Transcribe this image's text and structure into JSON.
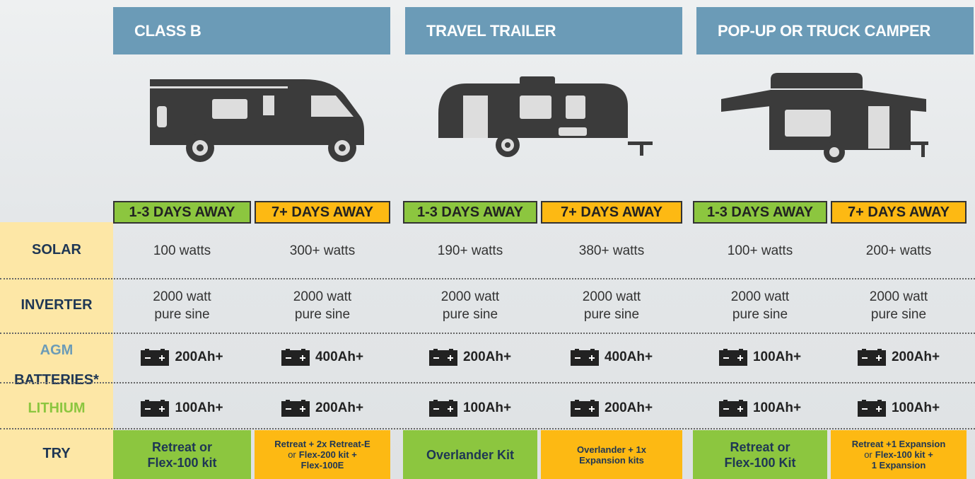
{
  "row_labels": {
    "solar": "SOLAR",
    "inverter": "INVERTER",
    "agm": "AGM",
    "batteries": "BATTERIES*",
    "lithium": "LITHIUM",
    "try": "TRY"
  },
  "vehicles": [
    {
      "title": "CLASS B",
      "plans": [
        {
          "duration": "1-3 DAYS AWAY",
          "solar": "100 watts",
          "inverter": [
            "2000 watt",
            "pure sine"
          ],
          "agm": "200Ah+",
          "lithium": "100Ah+",
          "try": [
            [
              {
                "text": "Retreat or",
                "bold": true
              }
            ],
            [
              {
                "text": "Flex-100 kit",
                "bold": true
              }
            ]
          ]
        },
        {
          "duration": "7+ DAYS AWAY",
          "solar": "300+ watts",
          "inverter": [
            "2000 watt",
            "pure sine"
          ],
          "agm": "400Ah+",
          "lithium": "200Ah+",
          "try": [
            [
              {
                "text": "Retreat + 2x Retreat-E",
                "bold": true
              }
            ],
            [
              {
                "text": "or",
                "bold": false
              },
              {
                "text": "Flex-200 kit +",
                "bold": true
              }
            ],
            [
              {
                "text": "Flex-100E",
                "bold": true
              }
            ]
          ]
        }
      ]
    },
    {
      "title": "TRAVEL TRAILER",
      "plans": [
        {
          "duration": "1-3 DAYS AWAY",
          "solar": "190+ watts",
          "inverter": [
            "2000 watt",
            "pure sine"
          ],
          "agm": "200Ah+",
          "lithium": "100Ah+",
          "try": [
            [
              {
                "text": "Overlander Kit",
                "bold": true
              }
            ]
          ]
        },
        {
          "duration": "7+ DAYS AWAY",
          "solar": "380+ watts",
          "inverter": [
            "2000 watt",
            "pure sine"
          ],
          "agm": "400Ah+",
          "lithium": "200Ah+",
          "try": [
            [
              {
                "text": "Overlander + 1x",
                "bold": true
              }
            ],
            [
              {
                "text": "Expansion kits",
                "bold": true
              }
            ]
          ]
        }
      ]
    },
    {
      "title": "POP-UP OR TRUCK CAMPER",
      "plans": [
        {
          "duration": "1-3 DAYS AWAY",
          "solar": "100+ watts",
          "inverter": [
            "2000 watt",
            "pure sine"
          ],
          "agm": "100Ah+",
          "lithium": "100Ah+",
          "try": [
            [
              {
                "text": "Retreat or",
                "bold": true
              }
            ],
            [
              {
                "text": "Flex-100 Kit",
                "bold": true
              }
            ]
          ]
        },
        {
          "duration": "7+ DAYS AWAY",
          "solar": "200+ watts",
          "inverter": [
            "2000 watt",
            "pure sine"
          ],
          "agm": "200Ah+",
          "lithium": "100Ah+",
          "try": [
            [
              {
                "text": "Retreat +1 Expansion",
                "bold": true
              }
            ],
            [
              {
                "text": "or",
                "bold": false
              },
              {
                "text": "Flex-100 kit +",
                "bold": true
              }
            ],
            [
              {
                "text": "1 Expansion",
                "bold": true
              }
            ]
          ]
        }
      ]
    }
  ]
}
